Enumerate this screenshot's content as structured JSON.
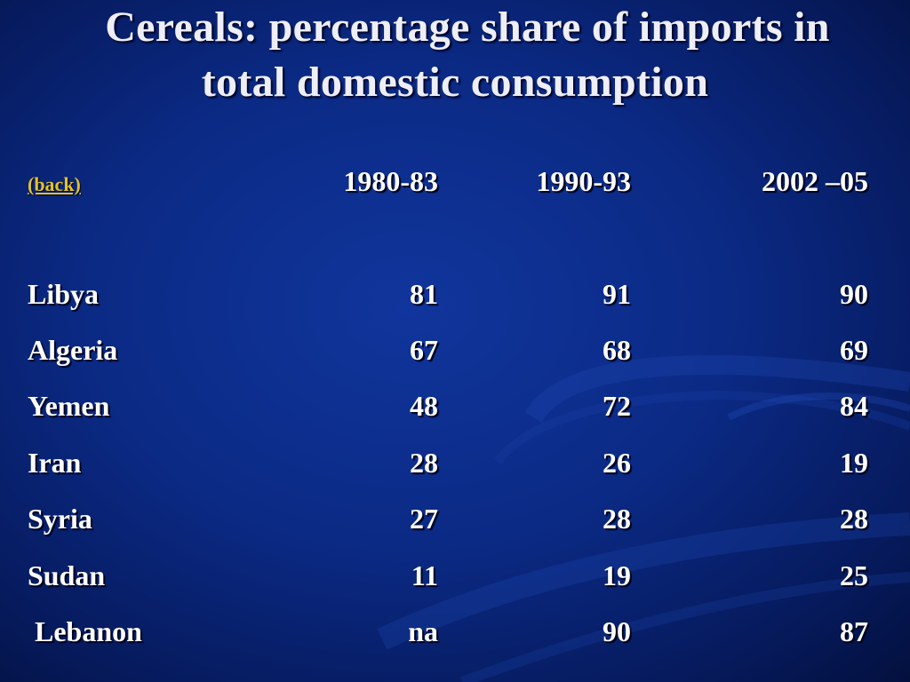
{
  "title": {
    "line1": "Cereals: percentage share of imports in",
    "line2": "total domestic consumption"
  },
  "back_link": "(back)",
  "columns": [
    "1980-83",
    "1990-93",
    "2002 –05"
  ],
  "rows": [
    {
      "country": "Libya",
      "values": [
        "81",
        "91",
        "90"
      ]
    },
    {
      "country": "Algeria",
      "values": [
        "67",
        "68",
        "69"
      ]
    },
    {
      "country": "Yemen",
      "values": [
        "48",
        "72",
        "84"
      ]
    },
    {
      "country": "Iran",
      "values": [
        "28",
        "26",
        "19"
      ]
    },
    {
      "country": "Syria",
      "values": [
        "27",
        "28",
        "28"
      ]
    },
    {
      "country": "Sudan",
      "values": [
        "11",
        "19",
        "25"
      ]
    },
    {
      "country": " Lebanon",
      "values": [
        "na",
        "90",
        "87"
      ]
    }
  ],
  "colors": {
    "background": "#0b2a85",
    "text": "#ffffff",
    "link": "#e3c22a"
  }
}
